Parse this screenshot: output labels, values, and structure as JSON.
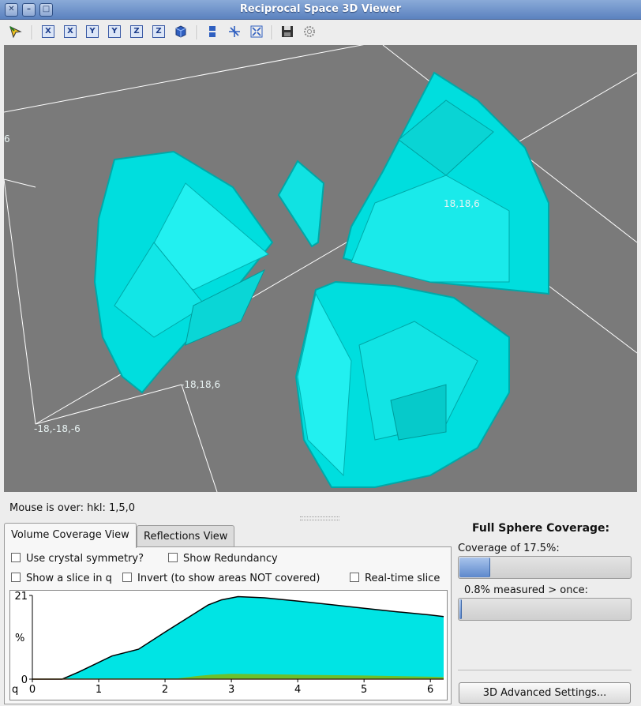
{
  "window": {
    "title": "Reciprocal Space 3D Viewer"
  },
  "toolbar": {
    "icons": [
      "pick-icon",
      "view-x-pos-icon",
      "view-x-neg-icon",
      "view-y-pos-icon",
      "view-y-neg-icon",
      "view-z-pos-icon",
      "view-z-neg-icon",
      "view-3d-icon",
      "slice-icon",
      "rotate-icon",
      "fit-icon",
      "save-icon",
      "settings-icon"
    ],
    "axis_letters": [
      "X",
      "X",
      "Y",
      "Y",
      "Z",
      "Z"
    ]
  },
  "view3d": {
    "labels": [
      "6",
      "18,18,6",
      "-18,18,6",
      "-18,-18,-6"
    ],
    "volume_color": "#00e4e4",
    "background": "#7a7a7a"
  },
  "status": {
    "mouse_over": "Mouse is over: hkl: 1,5,0"
  },
  "tabs": [
    {
      "label": "Volume Coverage View",
      "active": true
    },
    {
      "label": "Reflections View",
      "active": false
    }
  ],
  "options": {
    "crystal_symmetry": "Use crystal symmetry?",
    "show_redundancy": "Show Redundancy",
    "show_slice": "Show a slice in q",
    "invert": "Invert (to show areas NOT covered)",
    "realtime": "Real-time slice"
  },
  "chart_data": {
    "type": "area",
    "xlabel": "q",
    "ylabel": "%",
    "xlim": [
      0,
      6.2
    ],
    "ylim": [
      0,
      21
    ],
    "yticks": [
      "21",
      "0"
    ],
    "xticks": [
      "0",
      "1",
      "2",
      "3",
      "4",
      "5",
      "6"
    ],
    "series": [
      {
        "color": "#00e4e4",
        "x": [
          0,
          0.45,
          0.7,
          1.0,
          1.2,
          1.6,
          2.0,
          2.4,
          2.65,
          2.85,
          3.1,
          3.5,
          4.0,
          4.5,
          5.0,
          5.5,
          6.0,
          6.2
        ],
        "y": [
          0,
          0,
          1.8,
          4.2,
          5.8,
          7.5,
          11.8,
          16.0,
          18.6,
          19.9,
          20.7,
          20.4,
          19.6,
          18.7,
          17.8,
          16.9,
          16.1,
          15.7
        ]
      },
      {
        "color": "#6cc02c",
        "x": [
          0,
          2.2,
          2.5,
          2.7,
          3.0,
          3.5,
          4.0,
          5.0,
          6.0,
          6.2
        ],
        "y": [
          0,
          0.1,
          0.7,
          1.0,
          1.2,
          1.1,
          1.0,
          0.8,
          0.5,
          0.4
        ]
      },
      {
        "color": "#e04020",
        "x": [
          0,
          6.2
        ],
        "y": [
          0,
          0
        ]
      }
    ]
  },
  "coverage": {
    "heading": "Full Sphere Coverage:",
    "coverage_label": "Coverage of  17.5%:",
    "coverage_fraction": 0.175,
    "redundant_label": "0.8% measured > once:",
    "redundant_fraction": 0.008,
    "advanced_button": "3D Advanced Settings..."
  }
}
